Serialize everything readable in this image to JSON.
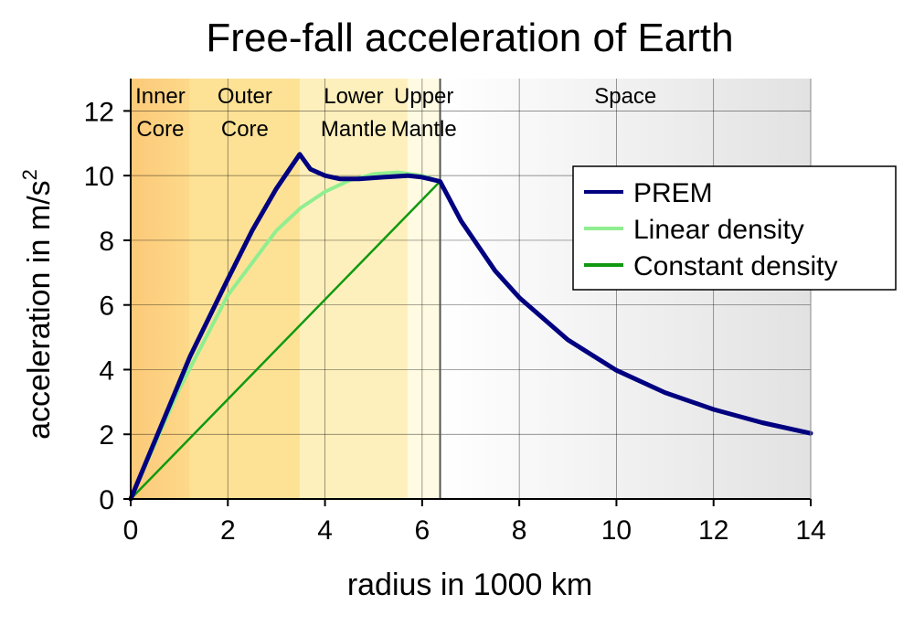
{
  "chart_data": {
    "type": "line",
    "title": "Free-fall acceleration of Earth",
    "xlabel": "radius in 1000 km",
    "ylabel_main": "acceleration in m/s",
    "ylabel_sup": "2",
    "xlim": [
      0,
      14
    ],
    "ylim": [
      0,
      13
    ],
    "xticks": [
      0,
      2,
      4,
      6,
      8,
      10,
      12,
      14
    ],
    "yticks": [
      0,
      2,
      4,
      6,
      8,
      10,
      12
    ],
    "grid": true,
    "legend_position": "top-right",
    "regions": [
      {
        "line1": "Inner",
        "line2": "Core",
        "from": 0,
        "to": 1.22,
        "color": "#fccf7f"
      },
      {
        "line1": "Outer",
        "line2": "Core",
        "from": 1.22,
        "to": 3.48,
        "color": "#fde296"
      },
      {
        "line1": "Lower",
        "line2": "Mantle",
        "from": 3.48,
        "to": 5.7,
        "color": "#fef0bc"
      },
      {
        "line1": "Upper",
        "line2": "Mantle",
        "from": 5.7,
        "to": 6.37,
        "color": "#fffbe2"
      },
      {
        "line1": "Space",
        "line2": "",
        "from": 6.37,
        "to": 14,
        "color": "#f3f3f3"
      }
    ],
    "series": [
      {
        "name": "PREM",
        "color": "#000080",
        "x": [
          0,
          1.22,
          2.0,
          2.5,
          3.0,
          3.48,
          3.7,
          4.0,
          4.3,
          4.7,
          5.2,
          5.7,
          6.0,
          6.37,
          6.8,
          7.5,
          8.0,
          9.0,
          10.0,
          11.0,
          12.0,
          13.0,
          14.0
        ],
        "y": [
          0,
          4.4,
          6.8,
          8.3,
          9.6,
          10.66,
          10.2,
          10.0,
          9.9,
          9.9,
          9.95,
          10.0,
          9.95,
          9.82,
          8.6,
          7.06,
          6.23,
          4.92,
          3.98,
          3.29,
          2.77,
          2.36,
          2.03
        ]
      },
      {
        "name": "Linear density",
        "color": "#90ee90",
        "x": [
          0,
          1.0,
          2.0,
          3.0,
          3.5,
          4.0,
          4.5,
          5.0,
          5.5,
          6.0,
          6.37
        ],
        "y": [
          0,
          3.4,
          6.3,
          8.3,
          9.0,
          9.5,
          9.85,
          10.05,
          10.1,
          10.0,
          9.82
        ]
      },
      {
        "name": "Constant density",
        "color": "#119911",
        "x": [
          0,
          6.37
        ],
        "y": [
          0,
          9.82
        ]
      }
    ]
  }
}
